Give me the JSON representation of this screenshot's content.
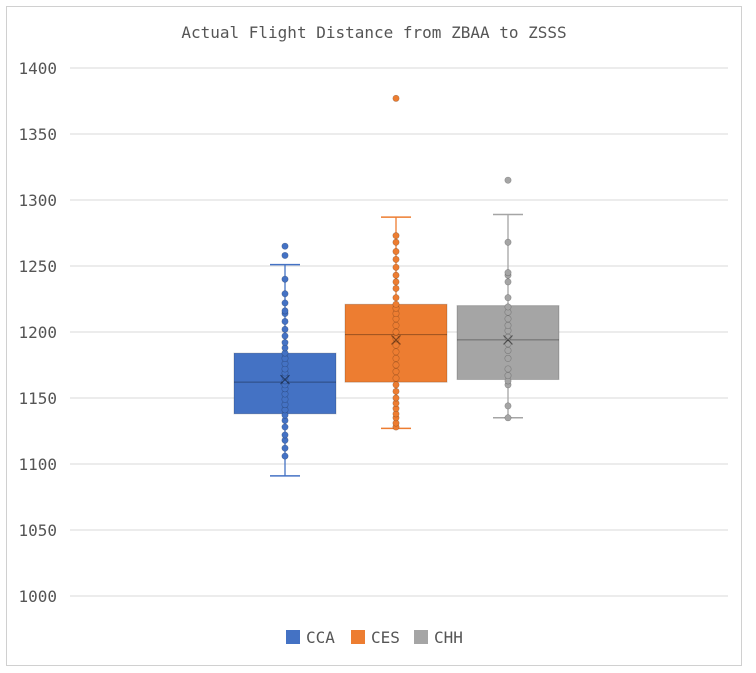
{
  "chart_data": {
    "type": "box",
    "title": "Actual Flight Distance from ZBAA to ZSSS",
    "xlabel": "",
    "ylabel": "",
    "ylim": [
      1000,
      1400
    ],
    "yticks": [
      "1000",
      "1050",
      "1100",
      "1150",
      "1200",
      "1250",
      "1300",
      "1350",
      "1400"
    ],
    "grid": true,
    "legend_position": "bottom",
    "series": [
      {
        "name": "CCA",
        "color": "#4472C4",
        "whisker_low": 1091,
        "q1": 1138,
        "median": 1162,
        "q3": 1184,
        "whisker_high": 1251,
        "mean": 1164,
        "points": [
          1106,
          1112,
          1118,
          1122,
          1128,
          1133,
          1137,
          1141,
          1145,
          1149,
          1153,
          1157,
          1160,
          1163,
          1166,
          1169,
          1172,
          1176,
          1180,
          1184,
          1188,
          1192,
          1197,
          1202,
          1208,
          1214,
          1216,
          1222,
          1229,
          1240,
          1258,
          1265
        ]
      },
      {
        "name": "CES",
        "color": "#ED7D31",
        "whisker_low": 1127,
        "q1": 1162,
        "median": 1198,
        "q3": 1221,
        "whisker_high": 1287,
        "mean": 1194,
        "points": [
          1128,
          1131,
          1135,
          1138,
          1142,
          1146,
          1150,
          1155,
          1160,
          1165,
          1170,
          1175,
          1180,
          1185,
          1190,
          1195,
          1200,
          1205,
          1210,
          1214,
          1218,
          1221,
          1226,
          1233,
          1238,
          1243,
          1249,
          1255,
          1261,
          1268,
          1273,
          1377
        ]
      },
      {
        "name": "CHH",
        "color": "#A5A5A5",
        "whisker_low": 1135,
        "q1": 1164,
        "median": 1194,
        "q3": 1220,
        "whisker_high": 1289,
        "mean": 1194,
        "points": [
          1135,
          1144,
          1160,
          1163,
          1167,
          1172,
          1180,
          1186,
          1191,
          1196,
          1201,
          1205,
          1210,
          1215,
          1219,
          1226,
          1238,
          1243,
          1245,
          1268,
          1315
        ]
      }
    ]
  }
}
